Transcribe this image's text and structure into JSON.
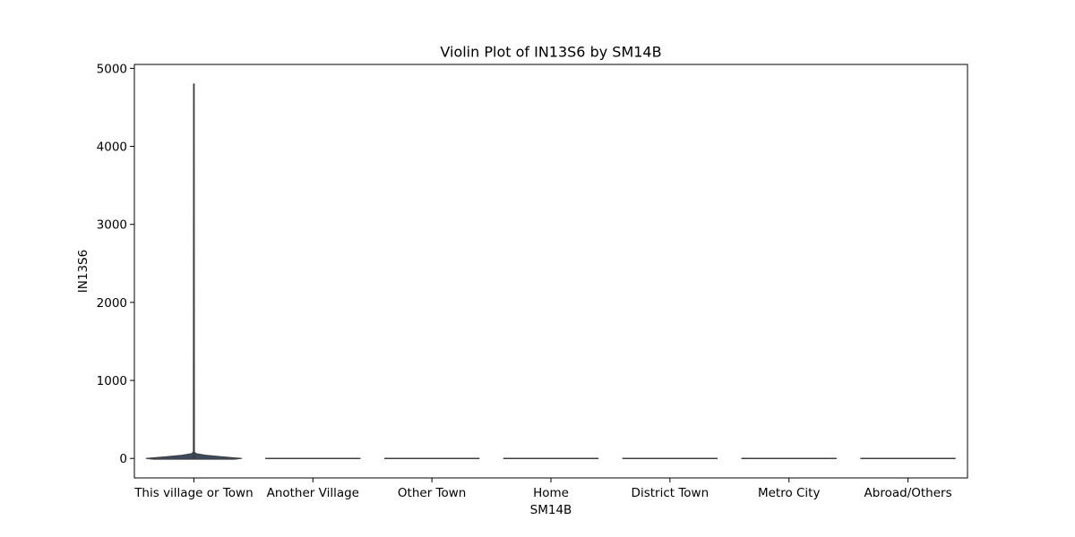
{
  "chart_data": {
    "type": "violin",
    "title": "Violin Plot of IN13S6 by SM14B",
    "xlabel": "SM14B",
    "ylabel": "IN13S6",
    "ylim": [
      -250,
      5050
    ],
    "yticks": [
      0,
      1000,
      2000,
      3000,
      4000,
      5000
    ],
    "grid": false,
    "legend": "none",
    "categories": [
      "This village or Town",
      "Another Village",
      "Other Town",
      "Home",
      "District Town",
      "Metro City",
      "Abroad/Others"
    ],
    "violins": [
      {
        "category": "This village or Town",
        "min": -10,
        "max": 4800,
        "median": 0,
        "q1": 0,
        "q3": 30,
        "density": [
          [
            -10,
            0.85
          ],
          [
            0,
            1.0
          ],
          [
            20,
            0.6
          ],
          [
            40,
            0.25
          ],
          [
            60,
            0.05
          ],
          [
            80,
            0.01
          ],
          [
            4800,
            0.005
          ]
        ]
      },
      {
        "category": "Another Village",
        "min": 0,
        "max": 0,
        "median": 0,
        "q1": 0,
        "q3": 0,
        "density": [
          [
            0,
            1.0
          ]
        ]
      },
      {
        "category": "Other Town",
        "min": 0,
        "max": 0,
        "median": 0,
        "q1": 0,
        "q3": 0,
        "density": [
          [
            0,
            1.0
          ]
        ]
      },
      {
        "category": "Home",
        "min": 0,
        "max": 0,
        "median": 0,
        "q1": 0,
        "q3": 0,
        "density": [
          [
            0,
            1.0
          ]
        ]
      },
      {
        "category": "District Town",
        "min": 0,
        "max": 0,
        "median": 0,
        "q1": 0,
        "q3": 0,
        "density": [
          [
            0,
            1.0
          ]
        ]
      },
      {
        "category": "Metro City",
        "min": 0,
        "max": 0,
        "median": 0,
        "q1": 0,
        "q3": 0,
        "density": [
          [
            0,
            1.0
          ]
        ]
      },
      {
        "category": "Abroad/Others",
        "min": 0,
        "max": 0,
        "median": 0,
        "q1": 0,
        "q3": 0,
        "density": [
          [
            0,
            1.0
          ]
        ]
      }
    ],
    "colors": {
      "violin_fill": "#3b4a5f",
      "violin_edge": "#3f3f3f",
      "box": "#3f3f3f",
      "axes": "#000000"
    }
  }
}
